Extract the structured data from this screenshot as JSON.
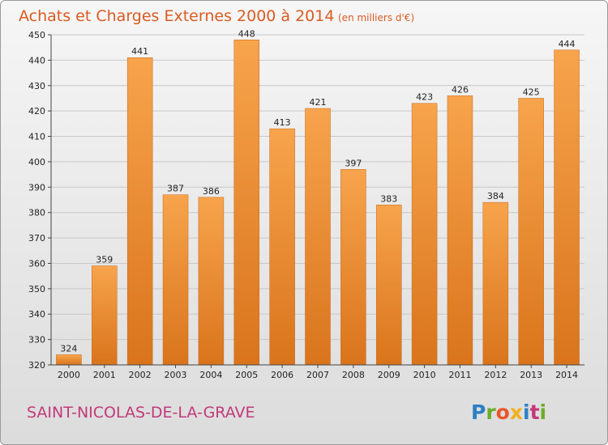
{
  "chart_data": {
    "type": "bar",
    "title": "Achats et Charges Externes 2000 à 2014",
    "subtitle": "(en milliers d'€)",
    "categories": [
      "2000",
      "2001",
      "2002",
      "2003",
      "2004",
      "2005",
      "2006",
      "2007",
      "2008",
      "2009",
      "2010",
      "2011",
      "2012",
      "2013",
      "2014"
    ],
    "values": [
      324,
      359,
      441,
      387,
      386,
      448,
      413,
      421,
      397,
      383,
      423,
      426,
      384,
      425,
      444
    ],
    "ylim": [
      320,
      450
    ],
    "yticks": [
      "320",
      "330",
      "340",
      "350",
      "360",
      "370",
      "380",
      "390",
      "400",
      "410",
      "420",
      "430",
      "440",
      "450"
    ],
    "grid": true,
    "bar_color": "#f4952f",
    "bar_color_dark": "#d9741c"
  },
  "footer": {
    "commune": "SAINT-NICOLAS-DE-LA-GRAVE",
    "logo_text": "Proxiti"
  }
}
